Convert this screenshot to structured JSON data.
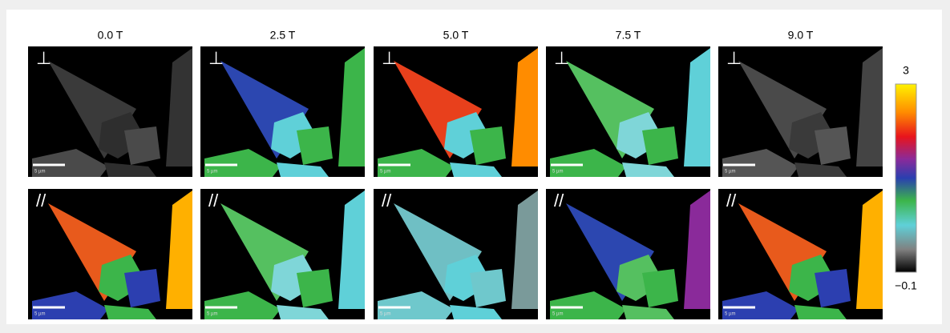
{
  "columns": [
    "0.0 T",
    "2.5 T",
    "5.0 T",
    "7.5 T",
    "9.0 T"
  ],
  "rows": [
    {
      "symbol": "⊥"
    },
    {
      "symbol": "//"
    }
  ],
  "scale_bar": "5 µm",
  "colorbar": {
    "ticks": [
      {
        "value": -0.1,
        "label": "−0.1"
      },
      3
    ]
  }
}
